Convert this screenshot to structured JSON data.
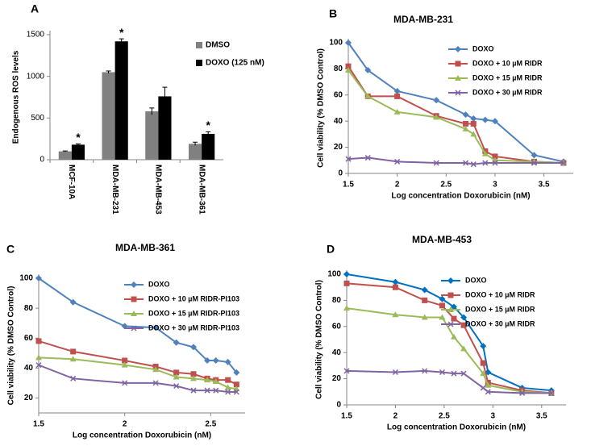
{
  "chart_data": [
    {
      "type": "bar",
      "panel_label": "A",
      "ylabel": "Endogenous ROS levels",
      "categories": [
        "MCF-10A",
        "MDA-MB-231",
        "MDA-MB-453",
        "MDA-MB-361"
      ],
      "series": [
        {
          "name": "DMSO",
          "color": "#808080",
          "values": [
            100,
            1050,
            580,
            190
          ],
          "errors": [
            5,
            15,
            40,
            20
          ]
        },
        {
          "name": "DOXO (125 nM)",
          "color": "#000000",
          "values": [
            180,
            1420,
            760,
            310
          ],
          "errors": [
            10,
            30,
            110,
            25
          ],
          "markers": [
            "*",
            "*",
            null,
            "*"
          ]
        }
      ],
      "ylim": [
        0,
        1500
      ],
      "yticks": [
        0,
        500,
        1000,
        1500
      ],
      "legend": "upper right"
    },
    {
      "type": "line",
      "panel_label": "B",
      "title": "MDA-MB-231",
      "xlabel": "Log concentration Doxorubicin (nM)",
      "ylabel": "Cell viability (% DMSO Control)",
      "x": [
        1.5,
        1.7,
        2,
        2.4,
        2.7,
        2.78,
        2.9,
        3,
        3.4,
        3.7
      ],
      "series": [
        {
          "name": "DOXO",
          "color": "#4f81bd",
          "marker": "diamond",
          "values": [
            100,
            79,
            63,
            56,
            45,
            42,
            41,
            40,
            14,
            9
          ]
        },
        {
          "name": "DOXO + 10 µM  RIDR",
          "color": "#c0504d",
          "marker": "square",
          "values": [
            82,
            59,
            59,
            44,
            38,
            38,
            17,
            13,
            9,
            8
          ]
        },
        {
          "name": "DOXO + 15 µM  RIDR",
          "color": "#9bbb59",
          "marker": "triangle",
          "values": [
            79,
            59,
            47,
            43,
            34,
            30,
            15,
            10,
            9,
            8
          ]
        },
        {
          "name": "DOXO +  30 µM  RIDR",
          "color": "#8064a2",
          "marker": "x",
          "values": [
            11,
            12,
            9,
            8,
            8,
            7,
            8,
            8,
            8,
            8
          ]
        }
      ],
      "xlim": [
        1.5,
        3.8
      ],
      "xticks": [
        1.5,
        2,
        2.5,
        3,
        3.5
      ],
      "ylim": [
        0,
        100
      ],
      "yticks": [
        0,
        20,
        40,
        60,
        80,
        100
      ],
      "legend": "upper right"
    },
    {
      "type": "line",
      "panel_label": "C",
      "title": "MDA-MB-361",
      "xlabel": "Log concentration Doxorubicin (nM)",
      "ylabel": "Cell viability (% DMSO Control)",
      "x": [
        1.5,
        1.7,
        2,
        2.18,
        2.3,
        2.4,
        2.48,
        2.53,
        2.6,
        2.65
      ],
      "series": [
        {
          "name": "DOXO",
          "color": "#4f81bd",
          "marker": "diamond",
          "values": [
            100,
            84,
            68,
            67,
            57,
            54,
            45,
            45,
            44,
            37
          ]
        },
        {
          "name": "DOXO + 10 µM RIDR-PI103",
          "color": "#c0504d",
          "marker": "square",
          "values": [
            58,
            51,
            45,
            41,
            37,
            36,
            33,
            32,
            32,
            29
          ]
        },
        {
          "name": "DOXO + 15 µM RIDR-PI103",
          "color": "#9bbb59",
          "marker": "triangle",
          "values": [
            47,
            46,
            42,
            39,
            34,
            33,
            32,
            31,
            27,
            26
          ]
        },
        {
          "name": "DOXO + 30 µM RIDR-PI103",
          "color": "#8064a2",
          "marker": "x",
          "values": [
            42,
            33,
            30,
            30,
            28,
            25,
            25,
            25,
            24,
            24
          ]
        }
      ],
      "xlim": [
        1.5,
        2.7
      ],
      "xticks": [
        1.5,
        2,
        2.5
      ],
      "ylim": [
        10,
        100
      ],
      "yticks": [
        20,
        40,
        60,
        80,
        100
      ],
      "legend": "upper right"
    },
    {
      "type": "line",
      "panel_label": "D",
      "title": "MDA-MB-453",
      "xlabel": "Log concentration Doxorubicin (nM)",
      "ylabel": "Cell viability (% DMSO Control)",
      "x": [
        1.5,
        2,
        2.3,
        2.48,
        2.6,
        2.7,
        2.9,
        2.95,
        3.3,
        3.6
      ],
      "series": [
        {
          "name": "DOXO",
          "color": "#0070c0",
          "marker": "diamond",
          "values": [
            100,
            94,
            88,
            81,
            75,
            67,
            45,
            25,
            13,
            11
          ]
        },
        {
          "name": "DOXO + 10 µM RIDR",
          "color": "#c0504d",
          "marker": "square",
          "values": [
            93,
            90,
            80,
            76,
            66,
            61,
            32,
            17,
            11,
            9
          ]
        },
        {
          "name": "DOXO + 15 µM RIDR",
          "color": "#9bbb59",
          "marker": "triangle",
          "values": [
            74,
            69,
            67,
            67,
            52,
            43,
            24,
            15,
            10,
            9
          ]
        },
        {
          "name": "DOXO + 30 µM RIDR",
          "color": "#8064a2",
          "marker": "x",
          "values": [
            26,
            25,
            26,
            25,
            24,
            24,
            13,
            10,
            9,
            9
          ]
        }
      ],
      "xlim": [
        1.5,
        3.75
      ],
      "xticks": [
        1.5,
        2,
        2.5,
        3,
        3.5
      ],
      "ylim": [
        0,
        100
      ],
      "yticks": [
        0,
        20,
        40,
        60,
        80,
        100
      ],
      "legend": "upper right"
    }
  ]
}
